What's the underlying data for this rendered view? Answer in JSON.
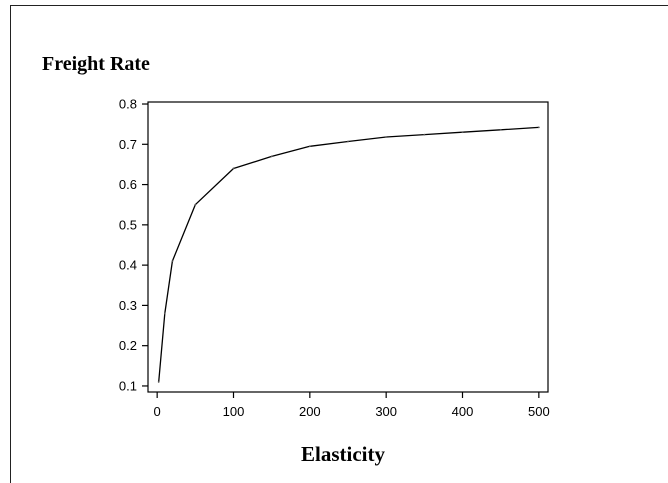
{
  "chart_data": {
    "type": "line",
    "ylabel": "Freight Rate",
    "xlabel": "Elasticity",
    "xlim": [
      -12,
      512
    ],
    "ylim": [
      0.085,
      0.805
    ],
    "xticks": [
      0,
      100,
      200,
      300,
      400,
      500
    ],
    "yticks": [
      0.1,
      0.2,
      0.3,
      0.4,
      0.5,
      0.6,
      0.7,
      0.8
    ],
    "grid": false,
    "x": [
      2,
      10,
      20,
      50,
      100,
      150,
      200,
      250,
      300,
      350,
      400,
      450,
      500
    ],
    "y": [
      0.11,
      0.28,
      0.41,
      0.55,
      0.64,
      0.67,
      0.695,
      0.707,
      0.718,
      0.724,
      0.73,
      0.736,
      0.742
    ],
    "series": [
      {
        "values": [
          0.11,
          0.28,
          0.41,
          0.55,
          0.64,
          0.67,
          0.695,
          0.707,
          0.718,
          0.724,
          0.73,
          0.736,
          0.742
        ]
      }
    ],
    "colors": {
      "line": "#000000",
      "axis": "#000000"
    }
  }
}
